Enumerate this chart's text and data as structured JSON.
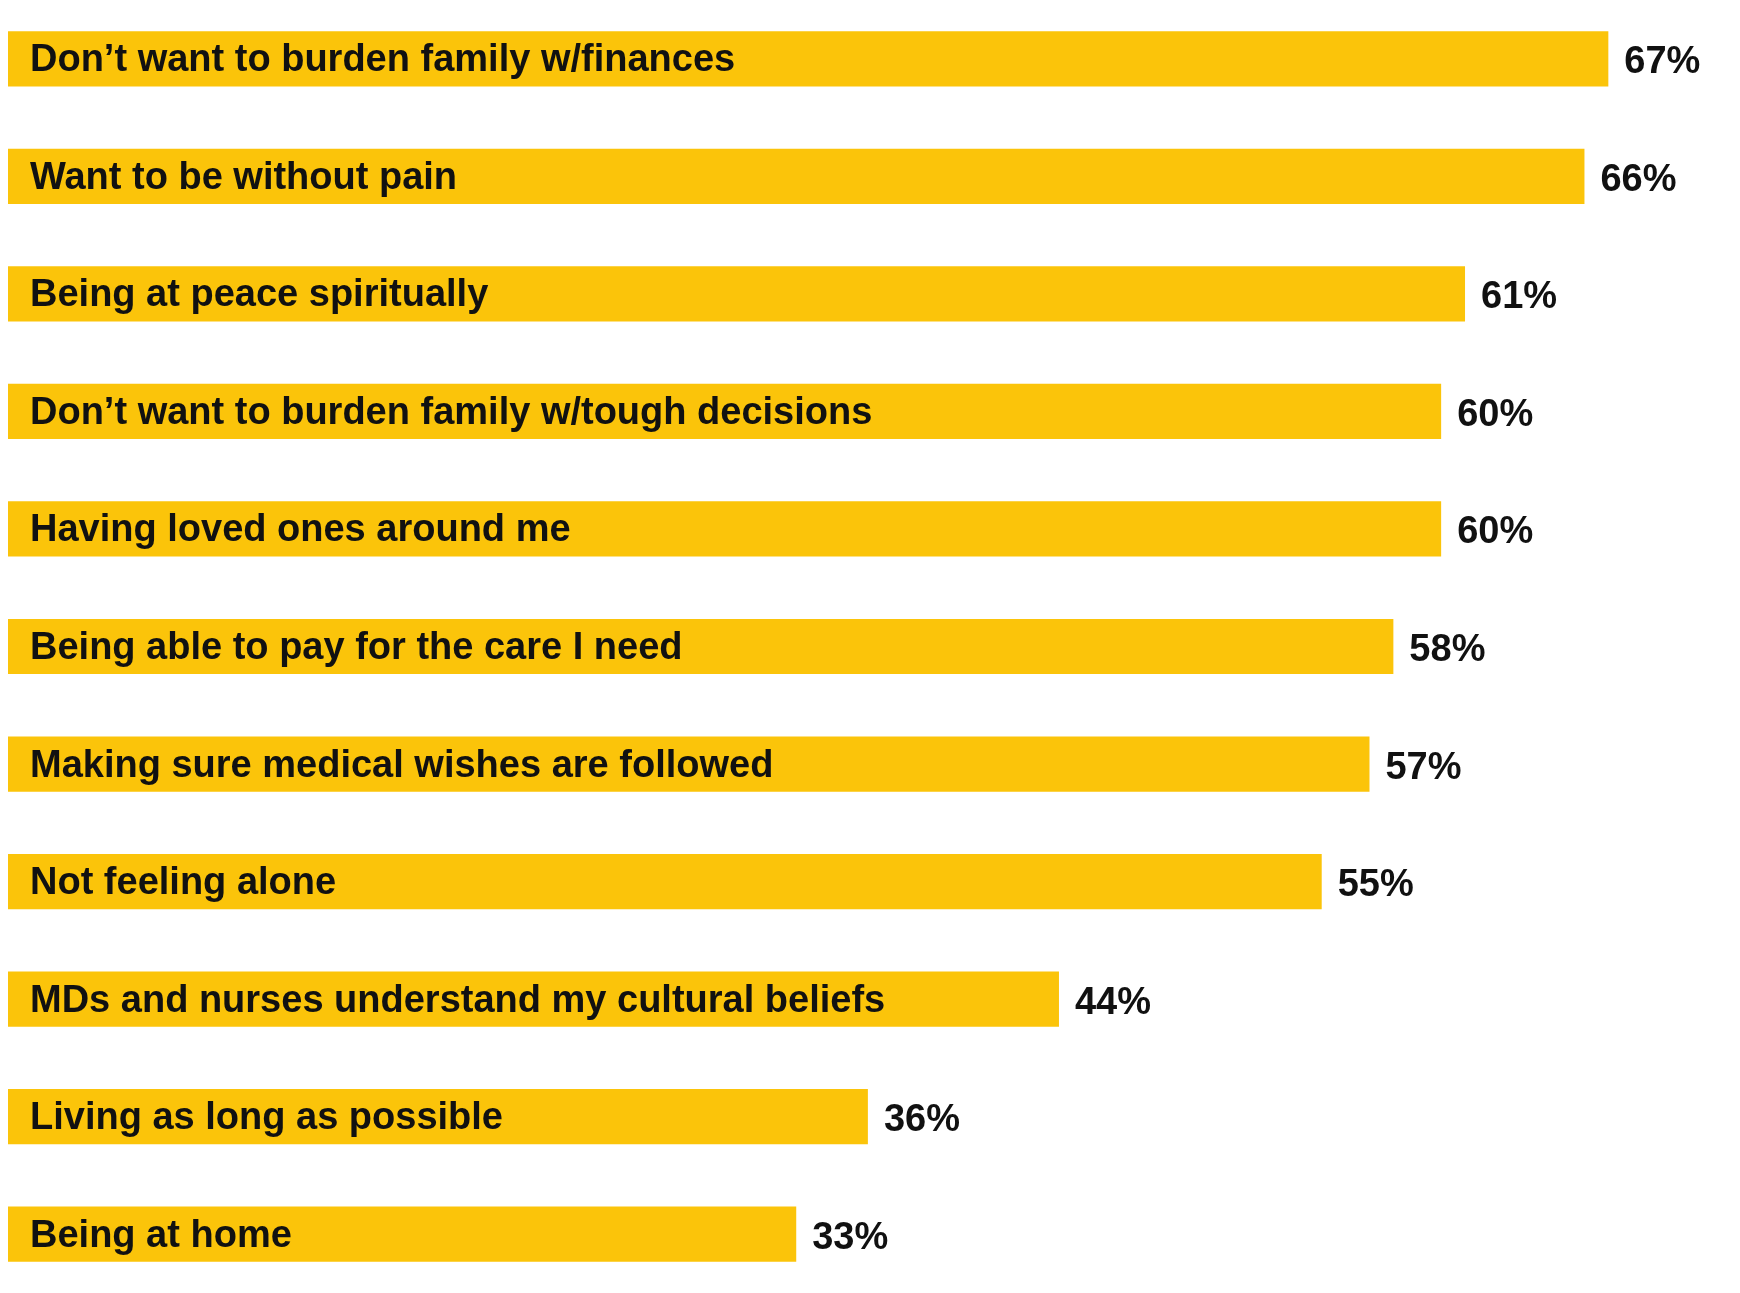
{
  "chart_data": {
    "type": "bar",
    "orientation": "horizontal",
    "categories": [
      "Don’t want to burden family w/finances",
      "Want to be without pain",
      "Being at peace spiritually",
      "Don’t want to burden family w/tough decisions",
      "Having loved ones around me",
      "Being able to pay for the care I need",
      "Making sure medical wishes are followed",
      "Not feeling alone",
      "MDs and nurses understand my cultural beliefs",
      "Living as long as possible",
      "Being at home"
    ],
    "values": [
      67,
      66,
      61,
      60,
      60,
      58,
      57,
      55,
      44,
      36,
      33
    ],
    "value_labels": [
      "67%",
      "66%",
      "61%",
      "60%",
      "60%",
      "58%",
      "57%",
      "55%",
      "44%",
      "36%",
      "33%"
    ],
    "color": "#fbc40a",
    "tick_labels": false
  }
}
